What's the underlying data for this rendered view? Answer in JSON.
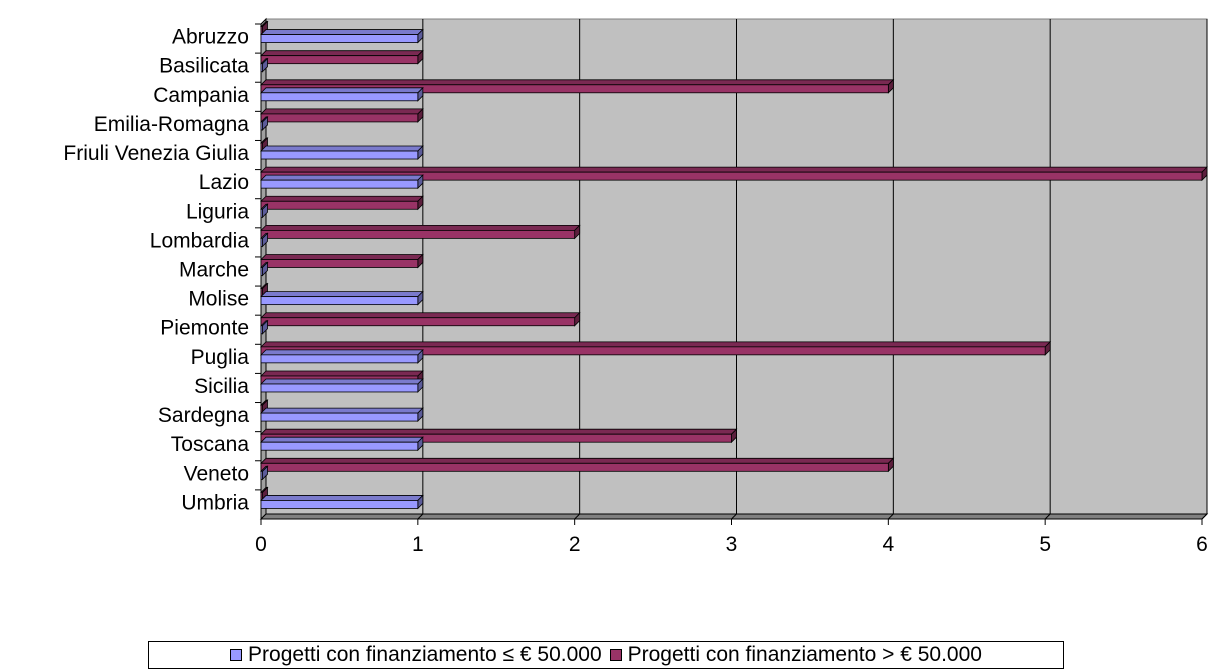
{
  "chart_data": {
    "type": "bar",
    "orientation": "horizontal",
    "style": "3d-clustered",
    "categories": [
      "Abruzzo",
      "Basilicata",
      "Campania",
      "Emilia-Romagna",
      "Friuli Venezia Giulia",
      "Lazio",
      "Liguria",
      "Lombardia",
      "Marche",
      "Molise",
      "Piemonte",
      "Puglia",
      "Sicilia",
      "Sardegna",
      "Toscana",
      "Veneto",
      "Umbria"
    ],
    "series": [
      {
        "name": "Progetti con finanziamento ≤ € 50.000",
        "color": "#9999ff",
        "values": [
          1,
          0,
          1,
          0,
          1,
          1,
          0,
          0,
          0,
          1,
          0,
          1,
          1,
          1,
          1,
          0,
          1
        ]
      },
      {
        "name": "Progetti con finanziamento > € 50.000",
        "color": "#993366",
        "values": [
          0,
          1,
          4,
          1,
          0,
          6,
          1,
          2,
          1,
          0,
          2,
          5,
          1,
          0,
          3,
          4,
          0
        ]
      }
    ],
    "xlim": [
      0,
      6
    ],
    "xticks": [
      "0",
      "1",
      "2",
      "3",
      "4",
      "5",
      "6"
    ],
    "title": "",
    "xlabel": "",
    "ylabel": "",
    "grid": true,
    "plot_background": "#c0c0c0",
    "legend_position": "bottom"
  }
}
